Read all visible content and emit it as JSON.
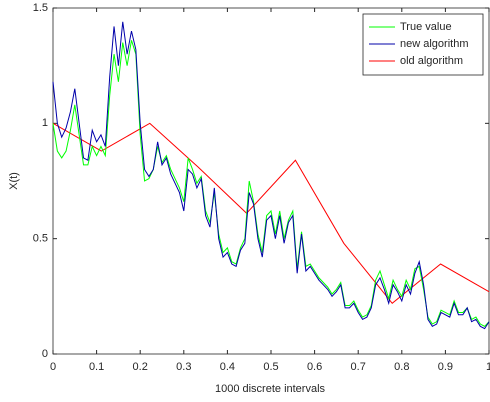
{
  "chart_data": {
    "type": "line",
    "xlabel": "1000 discrete intervals",
    "ylabel": "X(t)",
    "x": [
      0,
      0.01,
      0.02,
      0.03,
      0.04,
      0.05,
      0.06,
      0.07,
      0.08,
      0.09,
      0.1,
      0.11,
      0.12,
      0.13,
      0.14,
      0.15,
      0.16,
      0.17,
      0.18,
      0.19,
      0.2,
      0.21,
      0.22,
      0.23,
      0.24,
      0.25,
      0.26,
      0.27,
      0.28,
      0.29,
      0.3,
      0.31,
      0.32,
      0.33,
      0.34,
      0.35,
      0.36,
      0.37,
      0.38,
      0.39,
      0.4,
      0.41,
      0.42,
      0.43,
      0.44,
      0.45,
      0.46,
      0.47,
      0.48,
      0.49,
      0.5,
      0.51,
      0.52,
      0.53,
      0.54,
      0.55,
      0.56,
      0.57,
      0.58,
      0.59,
      0.6,
      0.61,
      0.62,
      0.63,
      0.64,
      0.65,
      0.66,
      0.67,
      0.68,
      0.69,
      0.7,
      0.71,
      0.72,
      0.73,
      0.74,
      0.75,
      0.76,
      0.77,
      0.78,
      0.79,
      0.8,
      0.81,
      0.82,
      0.83,
      0.84,
      0.85,
      0.86,
      0.87,
      0.88,
      0.89,
      0.9,
      0.91,
      0.92,
      0.93,
      0.94,
      0.95,
      0.96,
      0.97,
      0.98,
      0.99,
      1
    ],
    "series": [
      {
        "name": "True value",
        "color": "#00ff00",
        "values": [
          1.0,
          0.88,
          0.85,
          0.88,
          0.97,
          1.08,
          0.95,
          0.82,
          0.82,
          0.9,
          0.86,
          0.9,
          0.86,
          1.12,
          1.3,
          1.18,
          1.35,
          1.25,
          1.36,
          1.3,
          0.95,
          0.75,
          0.76,
          0.8,
          0.9,
          0.83,
          0.86,
          0.8,
          0.76,
          0.72,
          0.66,
          0.85,
          0.8,
          0.74,
          0.77,
          0.62,
          0.57,
          0.7,
          0.52,
          0.44,
          0.46,
          0.4,
          0.39,
          0.46,
          0.5,
          0.75,
          0.66,
          0.52,
          0.44,
          0.6,
          0.62,
          0.52,
          0.62,
          0.5,
          0.58,
          0.62,
          0.37,
          0.53,
          0.38,
          0.39,
          0.36,
          0.33,
          0.31,
          0.29,
          0.26,
          0.28,
          0.31,
          0.21,
          0.21,
          0.23,
          0.19,
          0.16,
          0.17,
          0.21,
          0.32,
          0.36,
          0.3,
          0.24,
          0.32,
          0.28,
          0.25,
          0.32,
          0.28,
          0.37,
          0.38,
          0.28,
          0.16,
          0.13,
          0.14,
          0.19,
          0.18,
          0.17,
          0.23,
          0.18,
          0.18,
          0.2,
          0.15,
          0.16,
          0.13,
          0.12,
          0.14
        ]
      },
      {
        "name": "new algorithm",
        "color": "#0000aa",
        "values": [
          1.18,
          1.0,
          0.94,
          0.98,
          1.05,
          1.15,
          1.0,
          0.85,
          0.84,
          0.97,
          0.92,
          0.95,
          0.9,
          1.2,
          1.42,
          1.25,
          1.44,
          1.3,
          1.4,
          1.32,
          1.0,
          0.8,
          0.77,
          0.8,
          0.92,
          0.82,
          0.85,
          0.78,
          0.74,
          0.7,
          0.62,
          0.8,
          0.78,
          0.72,
          0.76,
          0.6,
          0.55,
          0.72,
          0.5,
          0.42,
          0.44,
          0.39,
          0.38,
          0.45,
          0.48,
          0.7,
          0.65,
          0.5,
          0.42,
          0.58,
          0.6,
          0.5,
          0.6,
          0.48,
          0.57,
          0.6,
          0.35,
          0.52,
          0.36,
          0.38,
          0.35,
          0.32,
          0.3,
          0.28,
          0.25,
          0.27,
          0.3,
          0.2,
          0.2,
          0.22,
          0.18,
          0.15,
          0.16,
          0.2,
          0.3,
          0.33,
          0.28,
          0.22,
          0.3,
          0.27,
          0.23,
          0.3,
          0.26,
          0.35,
          0.4,
          0.3,
          0.15,
          0.12,
          0.13,
          0.18,
          0.17,
          0.16,
          0.22,
          0.17,
          0.17,
          0.2,
          0.14,
          0.15,
          0.12,
          0.11,
          0.14
        ]
      }
    ],
    "old": {
      "name": "old algorithm",
      "color": "#ff0000",
      "x": [
        0,
        0.111,
        0.222,
        0.333,
        0.444,
        0.556,
        0.667,
        0.778,
        0.889,
        1
      ],
      "values": [
        1.0,
        0.88,
        1.0,
        0.81,
        0.61,
        0.84,
        0.48,
        0.22,
        0.39,
        0.27
      ]
    },
    "xlim": [
      0,
      1
    ],
    "xticks": [
      0,
      0.1,
      0.2,
      0.3,
      0.4,
      0.5,
      0.6,
      0.7,
      0.8,
      0.9,
      1
    ],
    "ylim": [
      0,
      1.5
    ],
    "yticks": [
      0,
      0.5,
      1,
      1.5
    ],
    "legend": "northeast",
    "grid": false
  }
}
